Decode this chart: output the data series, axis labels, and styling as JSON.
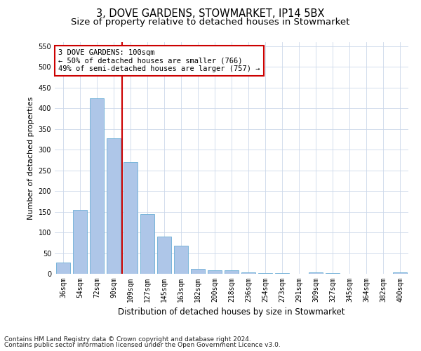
{
  "title1": "3, DOVE GARDENS, STOWMARKET, IP14 5BX",
  "title2": "Size of property relative to detached houses in Stowmarket",
  "xlabel": "Distribution of detached houses by size in Stowmarket",
  "ylabel": "Number of detached properties",
  "categories": [
    "36sqm",
    "54sqm",
    "72sqm",
    "90sqm",
    "109sqm",
    "127sqm",
    "145sqm",
    "163sqm",
    "182sqm",
    "200sqm",
    "218sqm",
    "236sqm",
    "254sqm",
    "273sqm",
    "291sqm",
    "309sqm",
    "327sqm",
    "345sqm",
    "364sqm",
    "382sqm",
    "400sqm"
  ],
  "values": [
    27,
    155,
    425,
    327,
    270,
    145,
    90,
    68,
    12,
    9,
    9,
    4,
    1,
    1,
    0,
    4,
    1,
    0,
    0,
    0,
    4
  ],
  "bar_color": "#aec6e8",
  "bar_edge_color": "#6baed6",
  "vline_color": "#cc0000",
  "annotation_text": "3 DOVE GARDENS: 100sqm\n← 50% of detached houses are smaller (766)\n49% of semi-detached houses are larger (757) →",
  "annotation_box_color": "#ffffff",
  "annotation_box_edge_color": "#cc0000",
  "ylim": [
    0,
    560
  ],
  "yticks": [
    0,
    50,
    100,
    150,
    200,
    250,
    300,
    350,
    400,
    450,
    500,
    550
  ],
  "footer1": "Contains HM Land Registry data © Crown copyright and database right 2024.",
  "footer2": "Contains public sector information licensed under the Open Government Licence v3.0.",
  "title1_fontsize": 10.5,
  "title2_fontsize": 9.5,
  "xlabel_fontsize": 8.5,
  "ylabel_fontsize": 8,
  "tick_fontsize": 7,
  "annot_fontsize": 7.5,
  "footer_fontsize": 6.5,
  "bg_color": "#ffffff",
  "grid_color": "#ccd8ea"
}
